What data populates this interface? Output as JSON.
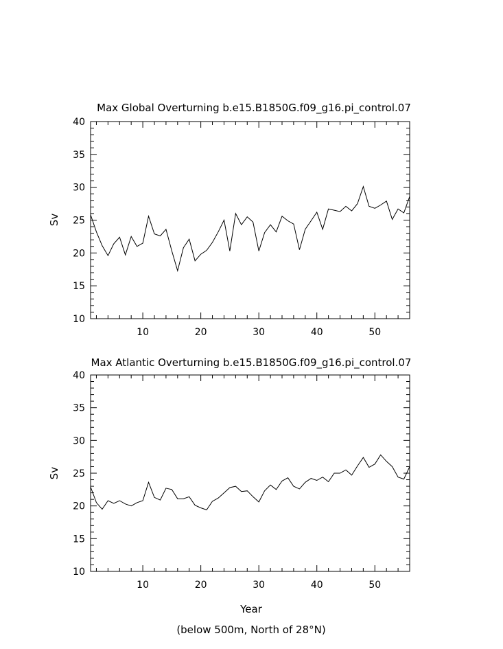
{
  "chart_data": [
    {
      "type": "line",
      "title": "Max Global Overturning b.e15.B1850G.f09_g16.pi_control.07",
      "xlabel": "",
      "ylabel": "Sv",
      "xlim": [
        1,
        56
      ],
      "ylim": [
        10,
        40
      ],
      "xticks": [
        10,
        20,
        30,
        40,
        50
      ],
      "yticks": [
        10,
        15,
        20,
        25,
        30,
        35,
        40
      ],
      "grid": false,
      "x": [
        1,
        2,
        3,
        4,
        5,
        6,
        7,
        8,
        9,
        10,
        11,
        12,
        13,
        14,
        15,
        16,
        17,
        18,
        19,
        20,
        21,
        22,
        23,
        24,
        25,
        26,
        27,
        28,
        29,
        30,
        31,
        32,
        33,
        34,
        35,
        36,
        37,
        38,
        39,
        40,
        41,
        42,
        43,
        44,
        45,
        46,
        47,
        48,
        49,
        50,
        51,
        52,
        53,
        54,
        55,
        56
      ],
      "series": [
        {
          "values": [
            25.8,
            23.2,
            21.1,
            19.6,
            21.4,
            22.4,
            19.7,
            22.5,
            21.0,
            21.5,
            25.6,
            22.9,
            22.6,
            23.6,
            20.3,
            17.3,
            20.8,
            22.1,
            18.8,
            19.8,
            20.4,
            21.6,
            23.2,
            25.0,
            20.3,
            26.0,
            24.3,
            25.5,
            24.7,
            20.3,
            23.1,
            24.3,
            23.2,
            25.6,
            24.9,
            24.4,
            20.5,
            23.6,
            24.9,
            26.2,
            23.6,
            26.7,
            26.5,
            26.3,
            27.1,
            26.4,
            27.5,
            30.1,
            27.1,
            26.8,
            27.3,
            27.9,
            25.1,
            26.7,
            26.1,
            28.6
          ]
        }
      ]
    },
    {
      "type": "line",
      "title": "Max Atlantic Overturning b.e15.B1850G.f09_g16.pi_control.07",
      "xlabel": "Year",
      "ylabel": "Sv",
      "note": "(below 500m, North of 28°N)",
      "xlim": [
        1,
        56
      ],
      "ylim": [
        10,
        40
      ],
      "xticks": [
        10,
        20,
        30,
        40,
        50
      ],
      "yticks": [
        10,
        15,
        20,
        25,
        30,
        35,
        40
      ],
      "grid": false,
      "x": [
        1,
        2,
        3,
        4,
        5,
        6,
        7,
        8,
        9,
        10,
        11,
        12,
        13,
        14,
        15,
        16,
        17,
        18,
        19,
        20,
        21,
        22,
        23,
        24,
        25,
        26,
        27,
        28,
        29,
        30,
        31,
        32,
        33,
        34,
        35,
        36,
        37,
        38,
        39,
        40,
        41,
        42,
        43,
        44,
        45,
        46,
        47,
        48,
        49,
        50,
        51,
        52,
        53,
        54,
        55,
        56
      ],
      "series": [
        {
          "values": [
            22.9,
            20.5,
            19.5,
            20.8,
            20.4,
            20.8,
            20.3,
            20.0,
            20.5,
            20.8,
            23.6,
            21.3,
            20.9,
            22.7,
            22.5,
            21.1,
            21.1,
            21.4,
            20.1,
            19.7,
            19.4,
            20.7,
            21.2,
            22.0,
            22.8,
            23.0,
            22.2,
            22.3,
            21.4,
            20.6,
            22.3,
            23.2,
            22.5,
            23.8,
            24.3,
            23.0,
            22.6,
            23.6,
            24.2,
            23.9,
            24.4,
            23.7,
            25.0,
            25.0,
            25.5,
            24.7,
            26.1,
            27.4,
            25.9,
            26.4,
            27.8,
            26.8,
            26.0,
            24.4,
            24.1,
            26.0
          ]
        }
      ]
    }
  ]
}
